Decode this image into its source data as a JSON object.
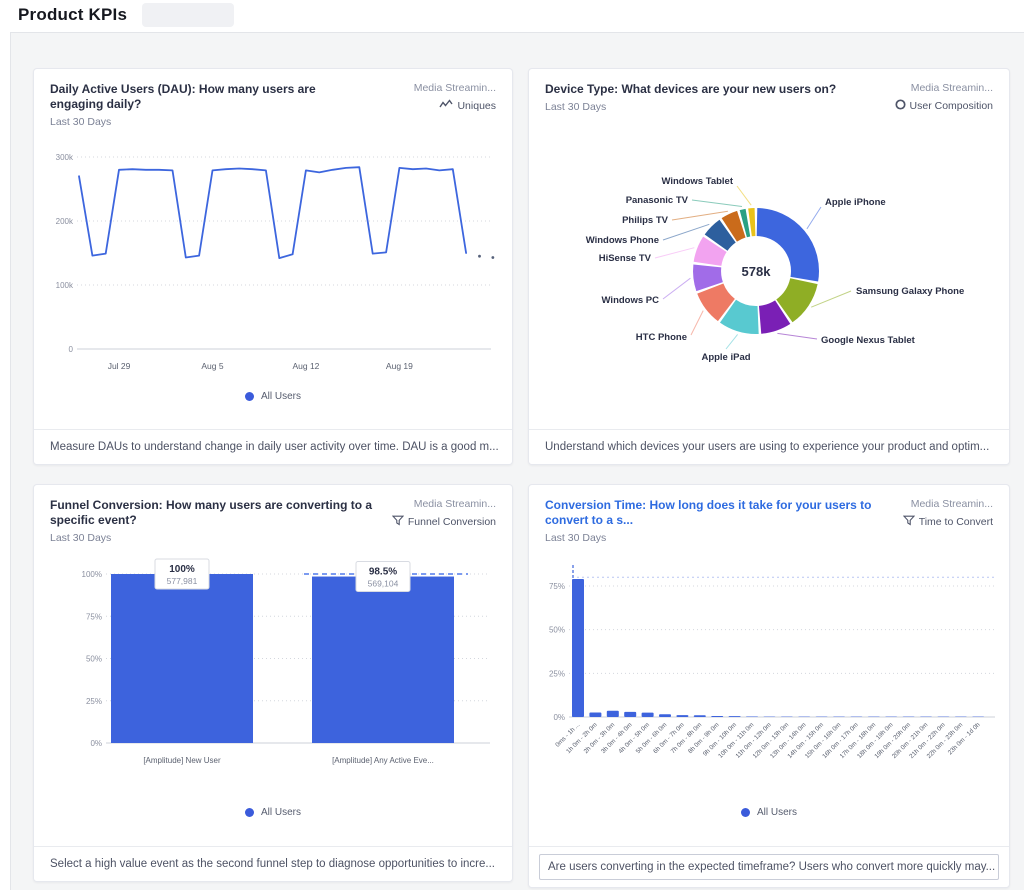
{
  "page": {
    "title": "Product KPIs"
  },
  "colors": {
    "accent": "#3d63dd",
    "legend_dot": "#3b5bdb"
  },
  "cards": [
    {
      "title": "Daily Active Users (DAU): How many users are engaging daily?",
      "subtitle": "Last 30 Days",
      "source": "Media Streamin...",
      "type_label": "Uniques",
      "type_icon": "line-chart-icon",
      "legend": "All Users",
      "footer": "Measure DAUs to understand change in daily user activity over time. DAU is a good m..."
    },
    {
      "title": "Device Type: What devices are your new users on?",
      "subtitle": "Last 30 Days",
      "source": "Media Streamin...",
      "type_label": "User Composition",
      "type_icon": "donut-icon",
      "footer": "Understand which devices your users are using to experience your product and optim..."
    },
    {
      "title": "Funnel Conversion: How many users are converting to a specific event?",
      "subtitle": "Last 30 Days",
      "source": "Media Streamin...",
      "type_label": "Funnel Conversion",
      "type_icon": "funnel-icon",
      "legend": "All Users",
      "footer": "Select a high value event as the second funnel step to diagnose opportunities to incre..."
    },
    {
      "title": "Conversion Time: How long does it take for your users to convert to a s...",
      "subtitle": "Last 30 Days",
      "source": "Media Streamin...",
      "type_label": "Time to Convert",
      "type_icon": "funnel-icon",
      "legend": "All Users",
      "footer": "Are users converting in the expected timeframe? Users who convert more quickly may..."
    }
  ],
  "chart_data": [
    {
      "type": "line",
      "title": "Daily Active Users (DAU)",
      "legend_position": "bottom",
      "grid": true,
      "ylim_thousands": [
        0,
        300
      ],
      "y_tick_values_thousands": [
        0,
        100,
        200,
        300
      ],
      "y_tick_labels": [
        "0",
        "100k",
        "200k",
        "300k"
      ],
      "x_tick_labels": [
        "Jul 29",
        "Aug 5",
        "Aug 12",
        "Aug 19"
      ],
      "x_tick_indices": [
        3,
        10,
        17,
        24
      ],
      "series": [
        {
          "name": "All Users",
          "color": "#3d66de",
          "values_thousands": [
            270,
            146,
            149,
            280,
            281,
            280,
            280,
            279,
            143,
            146,
            279,
            281,
            282,
            281,
            279,
            142,
            148,
            279,
            276,
            280,
            283,
            284,
            149,
            151,
            283,
            281,
            282,
            279,
            281,
            150
          ]
        }
      ],
      "projected_tail_thousands": [
        145,
        143
      ]
    },
    {
      "type": "pie",
      "donut": true,
      "center_label": "578k",
      "segments": [
        {
          "label": "Apple iPhone",
          "percent": 28,
          "color": "#3d66de"
        },
        {
          "label": "Samsung Galaxy Phone",
          "percent": 12.5,
          "color": "#8fae25"
        },
        {
          "label": "Google Nexus Tablet",
          "percent": 8.5,
          "color": "#7a1fb5"
        },
        {
          "label": "Apple iPad",
          "percent": 11,
          "color": "#58c9d0"
        },
        {
          "label": "HTC Phone",
          "percent": 9.5,
          "color": "#ee7a64"
        },
        {
          "label": "Windows PC",
          "percent": 7.5,
          "color": "#a16ce8"
        },
        {
          "label": "HiSense TV",
          "percent": 7.5,
          "color": "#f2a3f0"
        },
        {
          "label": "Windows Phone",
          "percent": 6,
          "color": "#2d5f9e"
        },
        {
          "label": "Philips TV",
          "percent": 5,
          "color": "#ca6b1b"
        },
        {
          "label": "Panasonic TV",
          "percent": 2.2,
          "color": "#2aa083"
        },
        {
          "label": "Windows Tablet",
          "percent": 2.3,
          "color": "#e9c21a"
        }
      ]
    },
    {
      "type": "bar",
      "title": "Funnel Conversion",
      "categories": [
        "[Amplitude] New User",
        "[Amplitude] Any Active Eve..."
      ],
      "ylim": [
        0,
        100
      ],
      "y_tick_values": [
        0,
        25,
        50,
        75,
        100
      ],
      "y_tick_labels": [
        "0%",
        "25%",
        "50%",
        "75%",
        "100%"
      ],
      "bars": [
        {
          "percent": 100,
          "percent_label": "100%",
          "count_label": "577,981"
        },
        {
          "percent": 98.5,
          "percent_label": "98.5%",
          "count_label": "569,104",
          "reference_line_percent": 100
        }
      ],
      "bar_color": "#3d63dd"
    },
    {
      "type": "bar",
      "title": "Conversion Time distribution",
      "ylim": [
        0,
        85
      ],
      "y_tick_values": [
        0,
        25,
        50,
        75
      ],
      "y_tick_labels": [
        "0%",
        "25%",
        "50%",
        "75%"
      ],
      "categories": [
        "0ms - 1h ...",
        "1h 0m - 2h 0m",
        "2h 0m - 3h 0m",
        "3h 0m - 4h 0m",
        "4h 0m - 5h 0m",
        "5h 0m - 6h 0m",
        "6h 0m - 7h 0m",
        "7h 0m - 8h 0m",
        "8h 0m - 9h 0m",
        "9h 0m - 10h 0m",
        "10h 0m - 11h 0m",
        "11h 0m - 12h 0m",
        "12h 0m - 13h 0m",
        "13h 0m - 14h 0m",
        "14h 0m - 15h 0m",
        "15h 0m - 16h 0m",
        "16h 0m - 17h 0m",
        "17h 0m - 18h 0m",
        "18h 0m - 19h 0m",
        "19h 0m - 20h 0m",
        "20h 0m - 21h 0m",
        "21h 0m - 22h 0m",
        "22h 0m - 23h 0m",
        "23h 0m - 1d 0h"
      ],
      "values_percent": [
        79,
        2.6,
        3.6,
        2.9,
        2.5,
        1.6,
        1.1,
        1.0,
        0.6,
        0.5,
        0.3,
        0.25,
        0.2,
        0.15,
        0.12,
        0.1,
        0.08,
        0.07,
        0.06,
        0.05,
        0.05,
        0.04,
        0.04,
        0.03
      ],
      "median_line_at_bin": 0,
      "reference_line_percent": 80,
      "bar_color": "#3d63dd"
    }
  ]
}
